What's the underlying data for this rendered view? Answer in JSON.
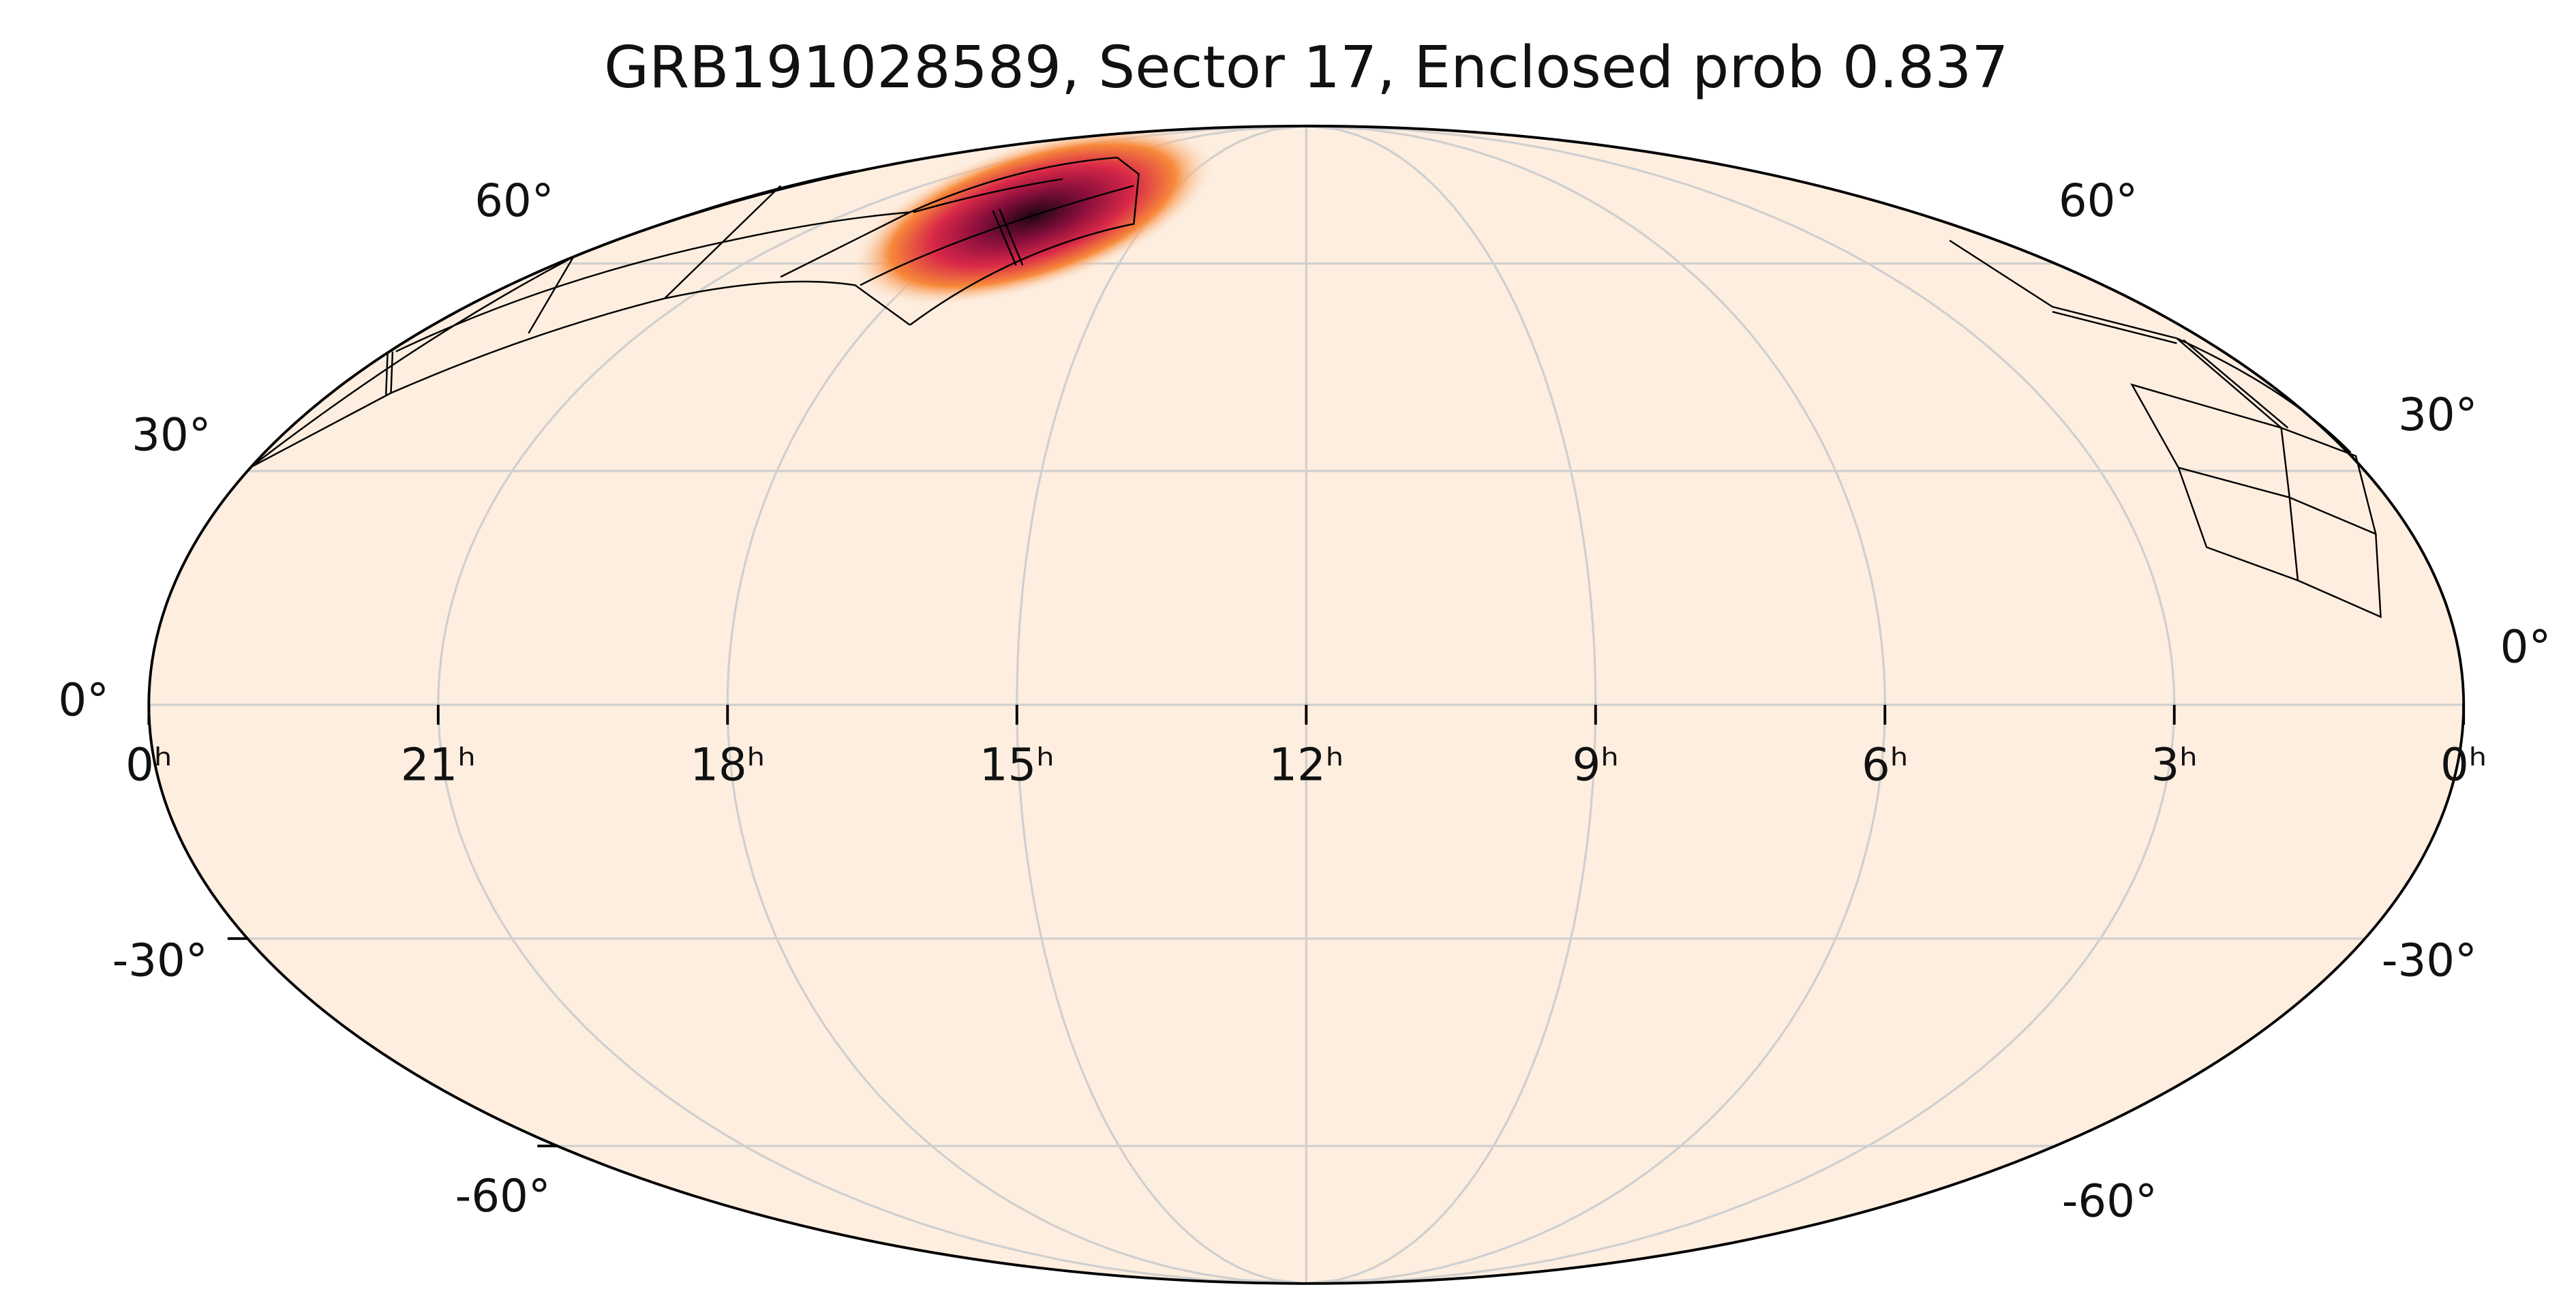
{
  "chart_data": {
    "type": "mollweide",
    "title": "GRB191028589, Sector 17, Enclosed prob 0.837",
    "xticks": [
      {
        "value": 24,
        "label": "0ʰ"
      },
      {
        "value": 21,
        "label": "21ʰ"
      },
      {
        "value": 18,
        "label": "18ʰ"
      },
      {
        "value": 15,
        "label": "15ʰ"
      },
      {
        "value": 12,
        "label": "12ʰ"
      },
      {
        "value": 9,
        "label": "9ʰ"
      },
      {
        "value": 6,
        "label": "6ʰ"
      },
      {
        "value": 3,
        "label": "3ʰ"
      },
      {
        "value": 0,
        "label": "0ʰ"
      }
    ],
    "yticks": [
      {
        "value": 60,
        "label": "60°"
      },
      {
        "value": 30,
        "label": "30°"
      },
      {
        "value": 0,
        "label": "0°"
      },
      {
        "value": -30,
        "label": "-30°"
      },
      {
        "value": -60,
        "label": "-60°"
      }
    ],
    "grid": true
  }
}
